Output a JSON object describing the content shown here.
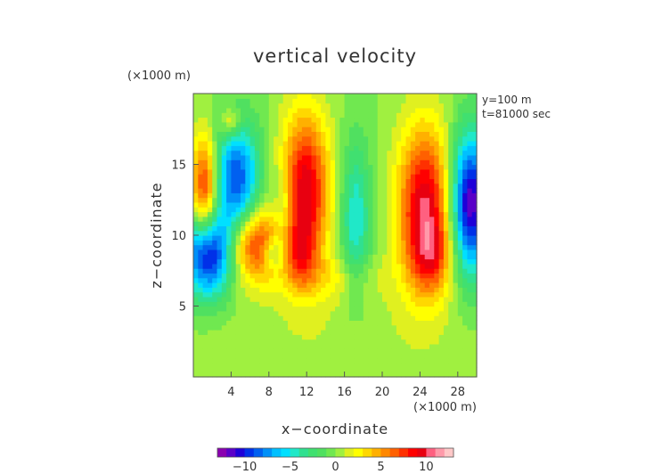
{
  "chart_data": {
    "type": "heatmap",
    "title": "vertical velocity",
    "xlabel": "x−coordinate",
    "ylabel": "z−coordinate",
    "x_unit": "(×1000 m)",
    "y_unit": "(×1000 m)",
    "annotations": [
      "y=100 m",
      "t=81000 sec"
    ],
    "xlim": [
      0,
      30
    ],
    "ylim": [
      0,
      20
    ],
    "x_ticks": [
      4,
      8,
      12,
      16,
      20,
      24,
      28
    ],
    "y_ticks": [
      5,
      10,
      15
    ],
    "x_tick_labels": [
      "4",
      "8",
      "12",
      "16",
      "20",
      "24",
      "28"
    ],
    "y_tick_labels": [
      "5",
      "10",
      "15"
    ],
    "colorbar": {
      "range": [
        -13,
        13
      ],
      "ticks": [
        -10,
        -5,
        0,
        5,
        10
      ],
      "tick_labels": [
        "−10",
        "−5",
        "0",
        "5",
        "10"
      ],
      "colors": [
        "#8a00b0",
        "#5a00c8",
        "#1e00d8",
        "#0030e8",
        "#0060f0",
        "#0090f8",
        "#00c0ff",
        "#00e0ff",
        "#20e8c8",
        "#30e090",
        "#40e070",
        "#50e060",
        "#70e850",
        "#a0f040",
        "#e0f020",
        "#ffff00",
        "#ffd800",
        "#ffb000",
        "#ff8800",
        "#ff6000",
        "#ff3000",
        "#ff0000",
        "#e80010",
        "#ff6080",
        "#ff9aaa",
        "#ffc8c8"
      ]
    },
    "field_description": "gaussian components: [x_center, z_center, x_sigma, z_sigma, amplitude]",
    "field_components": [
      [
        1.2,
        13.0,
        1.0,
        2.8,
        9
      ],
      [
        1.5,
        8.8,
        1.8,
        2.2,
        -12
      ],
      [
        4.6,
        14.0,
        1.7,
        2.8,
        -9
      ],
      [
        6.5,
        9.4,
        2.0,
        1.8,
        8
      ],
      [
        8.5,
        8.8,
        0.8,
        0.8,
        -4
      ],
      [
        11.8,
        13.2,
        1.8,
        3.8,
        10
      ],
      [
        11.2,
        8.8,
        1.2,
        1.6,
        4
      ],
      [
        9.6,
        11.5,
        0.9,
        2.5,
        -3
      ],
      [
        17.2,
        11.2,
        1.1,
        3.8,
        -5
      ],
      [
        24.5,
        12.0,
        2.0,
        4.0,
        10
      ],
      [
        25.3,
        8.5,
        1.5,
        1.8,
        4
      ],
      [
        29.3,
        12.3,
        1.5,
        3.5,
        -12
      ],
      [
        4.0,
        18.0,
        0.7,
        0.7,
        4
      ],
      [
        14.5,
        7.0,
        4.0,
        1.2,
        2
      ],
      [
        15.0,
        3.0,
        12.0,
        2.5,
        0.8
      ]
    ]
  }
}
